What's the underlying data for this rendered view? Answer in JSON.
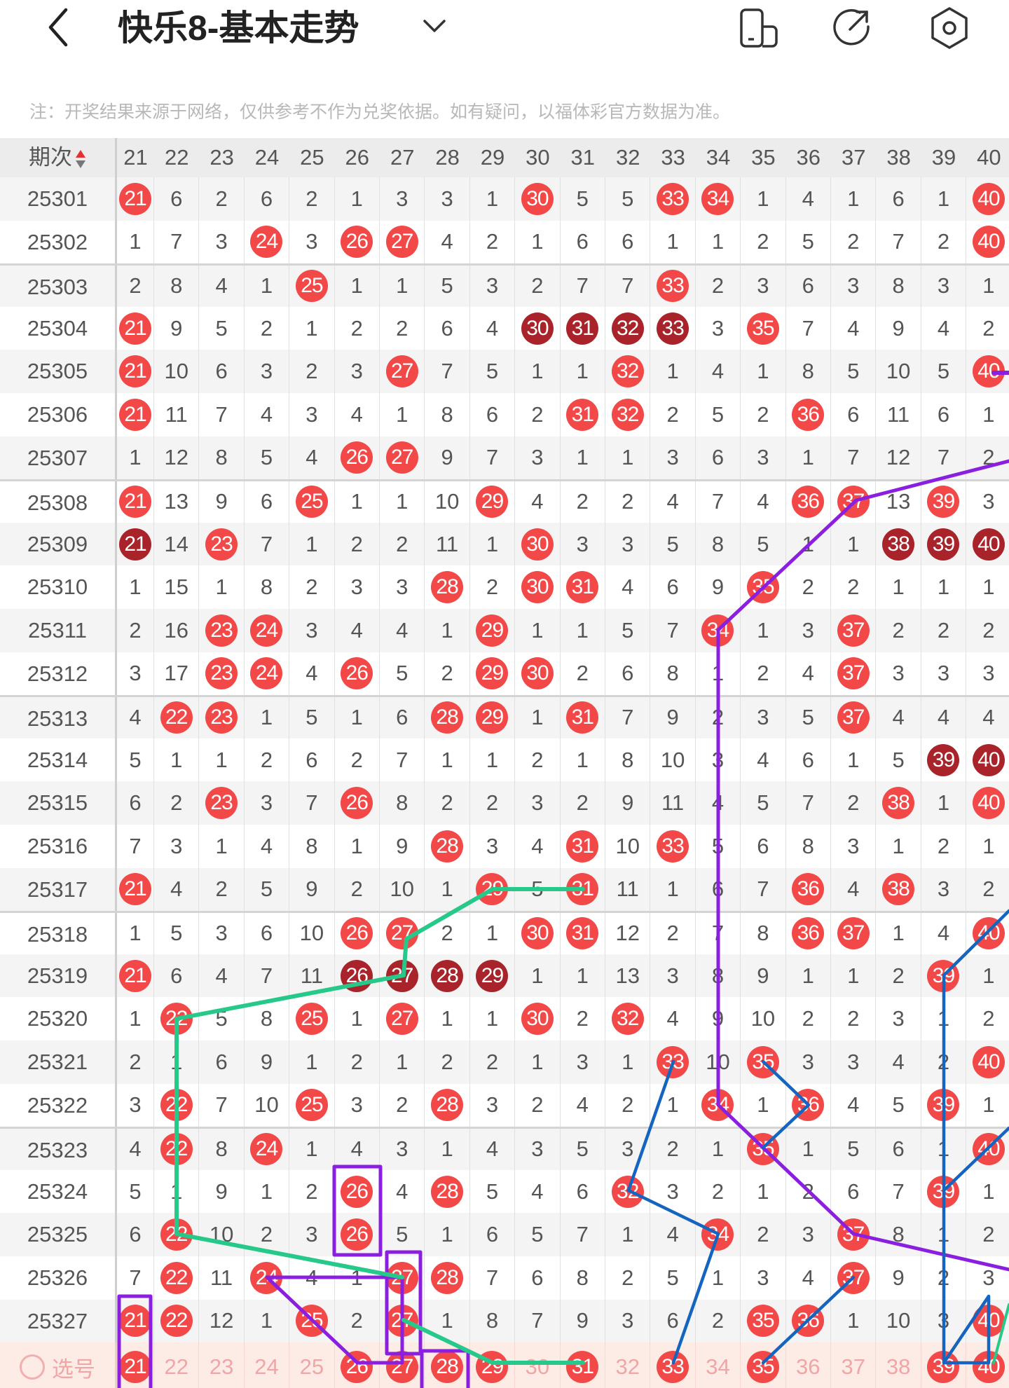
{
  "header": {
    "title": "快乐8-基本走势",
    "icons": [
      "back-chevron-icon",
      "dropdown-chevron-icon",
      "device-icon",
      "share-icon",
      "settings-icon"
    ]
  },
  "notice": "注：开奖结果来源于网络，仅供参考不作为兑奖依据。如有疑问，以福体彩官方数据为准。",
  "colors": {
    "hit": "#f24848",
    "consecutive": "#a8232a",
    "footer_bg": "#fdebe6",
    "annotation_purple": "#8a1fe0",
    "annotation_green": "#26c98a",
    "annotation_blue": "#1565c0"
  },
  "table": {
    "period_header": "期次",
    "columns": [
      "21",
      "22",
      "23",
      "24",
      "25",
      "26",
      "27",
      "28",
      "29",
      "30",
      "31",
      "32",
      "33",
      "34",
      "35",
      "36",
      "37",
      "38",
      "39",
      "40"
    ],
    "rows": [
      {
        "period": "25301",
        "values": [
          21,
          6,
          2,
          6,
          2,
          1,
          3,
          3,
          1,
          30,
          5,
          5,
          33,
          34,
          1,
          4,
          1,
          6,
          1,
          40
        ],
        "hits": [
          21,
          30,
          33,
          34,
          40
        ],
        "consecutive": []
      },
      {
        "period": "25302",
        "values": [
          1,
          7,
          3,
          24,
          3,
          26,
          27,
          4,
          2,
          1,
          6,
          6,
          1,
          1,
          2,
          5,
          2,
          7,
          2,
          40
        ],
        "hits": [
          24,
          26,
          27,
          40
        ],
        "consecutive": []
      },
      {
        "period": "25303",
        "values": [
          2,
          8,
          4,
          1,
          25,
          1,
          1,
          5,
          3,
          2,
          7,
          7,
          33,
          2,
          3,
          6,
          3,
          8,
          3,
          1
        ],
        "hits": [
          25,
          33
        ],
        "consecutive": []
      },
      {
        "period": "25304",
        "values": [
          21,
          9,
          5,
          2,
          1,
          2,
          2,
          6,
          4,
          30,
          31,
          32,
          33,
          3,
          35,
          7,
          4,
          9,
          4,
          2
        ],
        "hits": [
          21,
          30,
          31,
          32,
          33,
          35
        ],
        "consecutive": [
          30,
          31,
          32,
          33
        ]
      },
      {
        "period": "25305",
        "values": [
          21,
          10,
          6,
          3,
          2,
          3,
          27,
          7,
          5,
          1,
          1,
          32,
          1,
          4,
          1,
          8,
          5,
          10,
          5,
          40
        ],
        "hits": [
          21,
          27,
          32,
          40
        ],
        "consecutive": []
      },
      {
        "period": "25306",
        "values": [
          21,
          11,
          7,
          4,
          3,
          4,
          1,
          8,
          6,
          2,
          31,
          32,
          2,
          5,
          2,
          36,
          6,
          11,
          6,
          1
        ],
        "hits": [
          21,
          31,
          32,
          36
        ],
        "consecutive": []
      },
      {
        "period": "25307",
        "values": [
          1,
          12,
          8,
          5,
          4,
          26,
          27,
          9,
          7,
          3,
          1,
          1,
          3,
          6,
          3,
          1,
          7,
          12,
          7,
          2
        ],
        "hits": [
          26,
          27
        ],
        "consecutive": []
      },
      {
        "period": "25308",
        "values": [
          21,
          13,
          9,
          6,
          25,
          1,
          1,
          10,
          29,
          4,
          2,
          2,
          4,
          7,
          4,
          36,
          37,
          13,
          39,
          3
        ],
        "hits": [
          21,
          25,
          29,
          36,
          37,
          39
        ],
        "consecutive": []
      },
      {
        "period": "25309",
        "values": [
          21,
          14,
          23,
          7,
          1,
          2,
          2,
          11,
          1,
          30,
          3,
          3,
          5,
          8,
          5,
          1,
          1,
          38,
          39,
          40
        ],
        "hits": [
          21,
          23,
          30,
          38,
          39,
          40
        ],
        "consecutive": [
          21,
          38,
          39,
          40
        ]
      },
      {
        "period": "25310",
        "values": [
          1,
          15,
          1,
          8,
          2,
          3,
          3,
          28,
          2,
          30,
          31,
          4,
          6,
          9,
          35,
          2,
          2,
          1,
          1,
          1
        ],
        "hits": [
          28,
          30,
          31,
          35
        ],
        "consecutive": []
      },
      {
        "period": "25311",
        "values": [
          2,
          16,
          23,
          24,
          3,
          4,
          4,
          1,
          29,
          1,
          1,
          5,
          7,
          34,
          1,
          3,
          37,
          2,
          2,
          2
        ],
        "hits": [
          23,
          24,
          29,
          34,
          37
        ],
        "consecutive": []
      },
      {
        "period": "25312",
        "values": [
          3,
          17,
          23,
          24,
          4,
          26,
          5,
          2,
          29,
          30,
          2,
          6,
          8,
          1,
          2,
          4,
          37,
          3,
          3,
          3
        ],
        "hits": [
          23,
          24,
          26,
          29,
          30,
          37
        ],
        "consecutive": []
      },
      {
        "period": "25313",
        "values": [
          4,
          22,
          23,
          1,
          5,
          1,
          6,
          28,
          29,
          1,
          31,
          7,
          9,
          2,
          3,
          5,
          37,
          4,
          4,
          4
        ],
        "hits": [
          22,
          23,
          28,
          29,
          31,
          37
        ],
        "consecutive": []
      },
      {
        "period": "25314",
        "values": [
          5,
          1,
          1,
          2,
          6,
          2,
          7,
          1,
          1,
          2,
          1,
          8,
          10,
          3,
          4,
          6,
          1,
          5,
          39,
          40
        ],
        "hits": [
          39,
          40
        ],
        "consecutive": [
          39,
          40
        ]
      },
      {
        "period": "25315",
        "values": [
          6,
          2,
          23,
          3,
          7,
          26,
          8,
          2,
          2,
          3,
          2,
          9,
          11,
          4,
          5,
          7,
          2,
          38,
          1,
          40
        ],
        "hits": [
          23,
          26,
          38,
          40
        ],
        "consecutive": []
      },
      {
        "period": "25316",
        "values": [
          7,
          3,
          1,
          4,
          8,
          1,
          9,
          28,
          3,
          4,
          31,
          10,
          33,
          5,
          6,
          8,
          3,
          1,
          2,
          1
        ],
        "hits": [
          28,
          31,
          33
        ],
        "consecutive": []
      },
      {
        "period": "25317",
        "values": [
          21,
          4,
          2,
          5,
          9,
          2,
          10,
          1,
          29,
          5,
          31,
          11,
          1,
          6,
          7,
          36,
          4,
          38,
          3,
          2
        ],
        "hits": [
          21,
          29,
          31,
          36,
          38
        ],
        "consecutive": []
      },
      {
        "period": "25318",
        "values": [
          1,
          5,
          3,
          6,
          10,
          26,
          27,
          2,
          1,
          30,
          31,
          12,
          2,
          7,
          8,
          36,
          37,
          1,
          4,
          40
        ],
        "hits": [
          26,
          27,
          30,
          31,
          36,
          37,
          40
        ],
        "consecutive": []
      },
      {
        "period": "25319",
        "values": [
          21,
          6,
          4,
          7,
          11,
          26,
          27,
          28,
          29,
          1,
          1,
          13,
          3,
          8,
          9,
          1,
          1,
          2,
          39,
          1
        ],
        "hits": [
          21,
          26,
          27,
          28,
          29,
          39
        ],
        "consecutive": [
          26,
          27,
          28,
          29
        ]
      },
      {
        "period": "25320",
        "values": [
          1,
          22,
          5,
          8,
          25,
          1,
          27,
          1,
          1,
          30,
          2,
          32,
          4,
          9,
          10,
          2,
          2,
          3,
          1,
          2
        ],
        "hits": [
          22,
          25,
          27,
          30,
          32
        ],
        "consecutive": []
      },
      {
        "period": "25321",
        "values": [
          2,
          1,
          6,
          9,
          1,
          2,
          1,
          2,
          2,
          1,
          3,
          1,
          33,
          10,
          35,
          3,
          3,
          4,
          2,
          40
        ],
        "hits": [
          33,
          35,
          40
        ],
        "consecutive": []
      },
      {
        "period": "25322",
        "values": [
          3,
          22,
          7,
          10,
          25,
          3,
          2,
          28,
          3,
          2,
          4,
          2,
          1,
          34,
          1,
          36,
          4,
          5,
          39,
          1
        ],
        "hits": [
          22,
          25,
          28,
          34,
          36,
          39
        ],
        "consecutive": []
      },
      {
        "period": "25323",
        "values": [
          4,
          22,
          8,
          24,
          1,
          4,
          3,
          1,
          4,
          3,
          5,
          3,
          2,
          1,
          35,
          1,
          5,
          6,
          1,
          40
        ],
        "hits": [
          22,
          24,
          35,
          40
        ],
        "consecutive": []
      },
      {
        "period": "25324",
        "values": [
          5,
          1,
          9,
          1,
          2,
          26,
          4,
          28,
          5,
          4,
          6,
          32,
          3,
          2,
          1,
          2,
          6,
          7,
          39,
          1
        ],
        "hits": [
          26,
          28,
          32,
          39
        ],
        "consecutive": []
      },
      {
        "period": "25325",
        "values": [
          6,
          22,
          10,
          2,
          3,
          26,
          5,
          1,
          6,
          5,
          7,
          1,
          4,
          34,
          2,
          3,
          37,
          8,
          1,
          2
        ],
        "hits": [
          22,
          26,
          34,
          37
        ],
        "consecutive": []
      },
      {
        "period": "25326",
        "values": [
          7,
          22,
          11,
          24,
          4,
          1,
          27,
          28,
          7,
          6,
          8,
          2,
          5,
          1,
          3,
          4,
          37,
          9,
          2,
          3
        ],
        "hits": [
          22,
          24,
          27,
          28,
          37
        ],
        "consecutive": []
      },
      {
        "period": "25327",
        "values": [
          21,
          22,
          12,
          1,
          25,
          2,
          27,
          1,
          8,
          7,
          9,
          3,
          6,
          2,
          35,
          36,
          1,
          10,
          3,
          40
        ],
        "hits": [
          21,
          22,
          25,
          27,
          35,
          36,
          40
        ],
        "consecutive": []
      }
    ],
    "footer": {
      "label": "选号",
      "numbers": [
        "21",
        "22",
        "23",
        "24",
        "25",
        "26",
        "27",
        "28",
        "29",
        "30",
        "31",
        "32",
        "33",
        "34",
        "35",
        "36",
        "37",
        "38",
        "39",
        "40"
      ],
      "selected": [
        21,
        26,
        27,
        28,
        29,
        31,
        33,
        35,
        39,
        40
      ]
    }
  }
}
